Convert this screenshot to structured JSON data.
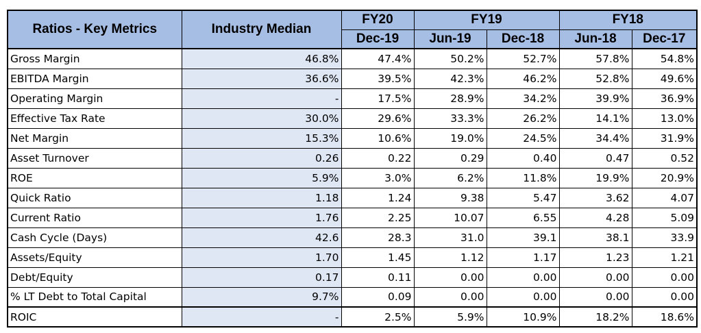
{
  "table": {
    "header": {
      "metric_label": "Ratios - Key Metrics",
      "median_label": "Industry Median",
      "fiscal_years": [
        {
          "label": "FY20",
          "periods": [
            "Dec-19"
          ]
        },
        {
          "label": "FY19",
          "periods": [
            "Jun-19",
            "Dec-18"
          ]
        },
        {
          "label": "FY18",
          "periods": [
            "Jun-18",
            "Dec-17"
          ]
        }
      ]
    },
    "rows": [
      {
        "metric": "Gross Margin",
        "median": "46.8%",
        "values": [
          "47.4%",
          "50.2%",
          "52.7%",
          "57.8%",
          "54.8%"
        ]
      },
      {
        "metric": "EBITDA Margin",
        "median": "36.6%",
        "values": [
          "39.5%",
          "42.3%",
          "46.2%",
          "52.8%",
          "49.6%"
        ]
      },
      {
        "metric": "Operating Margin",
        "median": "-",
        "values": [
          "17.5%",
          "28.9%",
          "34.2%",
          "39.9%",
          "36.9%"
        ]
      },
      {
        "metric": "Effective Tax Rate",
        "median": "30.0%",
        "values": [
          "29.6%",
          "33.3%",
          "26.2%",
          "14.1%",
          "13.0%"
        ]
      },
      {
        "metric": "Net Margin",
        "median": "15.3%",
        "values": [
          "10.6%",
          "19.0%",
          "24.5%",
          "34.4%",
          "31.9%"
        ]
      },
      {
        "metric": "Asset Turnover",
        "median": "0.26",
        "values": [
          "0.22",
          "0.29",
          "0.40",
          "0.47",
          "0.52"
        ]
      },
      {
        "metric": "ROE",
        "median": "5.9%",
        "values": [
          "3.0%",
          "6.2%",
          "11.8%",
          "19.9%",
          "20.9%"
        ]
      },
      {
        "metric": "Quick Ratio",
        "median": "1.18",
        "values": [
          "1.24",
          "9.38",
          "5.47",
          "3.62",
          "4.07"
        ]
      },
      {
        "metric": "Current Ratio",
        "median": "1.76",
        "values": [
          "2.25",
          "10.07",
          "6.55",
          "4.28",
          "5.09"
        ]
      },
      {
        "metric": "Cash Cycle (Days)",
        "median": "42.6",
        "values": [
          "28.3",
          "31.0",
          "39.1",
          "38.1",
          "33.9"
        ]
      },
      {
        "metric": "Assets/Equity",
        "median": "1.70",
        "values": [
          "1.45",
          "1.12",
          "1.17",
          "1.23",
          "1.21"
        ]
      },
      {
        "metric": "Debt/Equity",
        "median": "0.17",
        "values": [
          "0.11",
          "0.00",
          "0.00",
          "0.00",
          "0.00"
        ]
      },
      {
        "metric": "% LT Debt to Total Capital",
        "median": "9.7%",
        "values": [
          "0.09",
          "0.00",
          "0.00",
          "0.00",
          "0.00"
        ]
      },
      {
        "metric": "ROIC",
        "median": "-",
        "values": [
          "2.5%",
          "5.9%",
          "10.9%",
          "18.2%",
          "18.6%"
        ]
      }
    ]
  }
}
